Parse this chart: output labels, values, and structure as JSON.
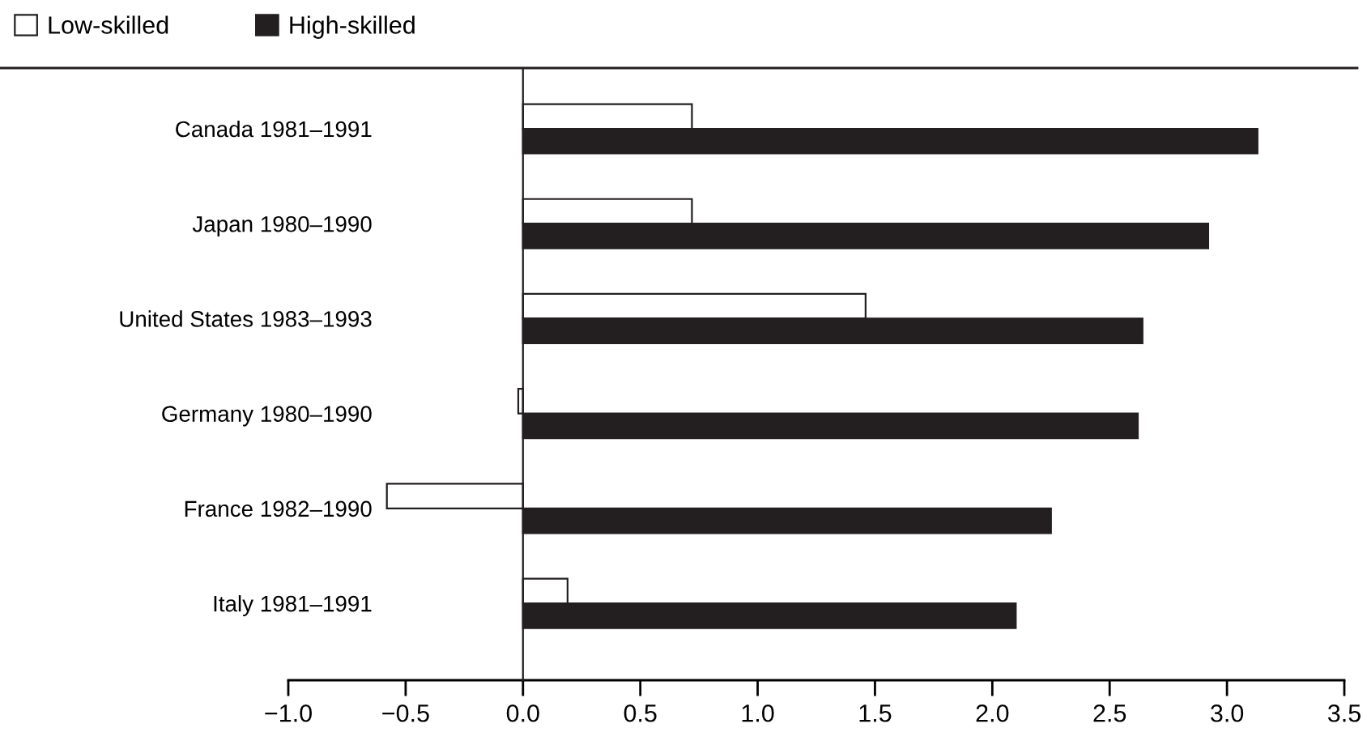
{
  "chart_data": {
    "type": "bar",
    "orientation": "horizontal",
    "categories": [
      "Canada 1981–1991",
      "Japan 1980–1990",
      "United States 1983–1993",
      "Germany 1980–1990",
      "France 1982–1990",
      "Italy 1981–1991"
    ],
    "series": [
      {
        "name": "Low-skilled",
        "color": "#ffffff",
        "values": [
          0.72,
          0.72,
          1.46,
          -0.02,
          -0.58,
          0.19
        ]
      },
      {
        "name": "High-skilled",
        "color": "#231f20",
        "values": [
          3.13,
          2.92,
          2.64,
          2.62,
          2.25,
          2.1
        ]
      }
    ],
    "xlim": [
      -1.0,
      3.5
    ],
    "xticks": [
      {
        "value": -1.0,
        "label": "−1.0"
      },
      {
        "value": -0.5,
        "label": "−0.5"
      },
      {
        "value": 0.0,
        "label": "0.0"
      },
      {
        "value": 0.5,
        "label": "0.5"
      },
      {
        "value": 1.0,
        "label": "1.0"
      },
      {
        "value": 1.5,
        "label": "1.5"
      },
      {
        "value": 2.0,
        "label": "2.0"
      },
      {
        "value": 2.5,
        "label": "2.5"
      },
      {
        "value": 3.0,
        "label": "3.0"
      },
      {
        "value": 3.5,
        "label": "3.5"
      }
    ],
    "legend": "top left"
  }
}
